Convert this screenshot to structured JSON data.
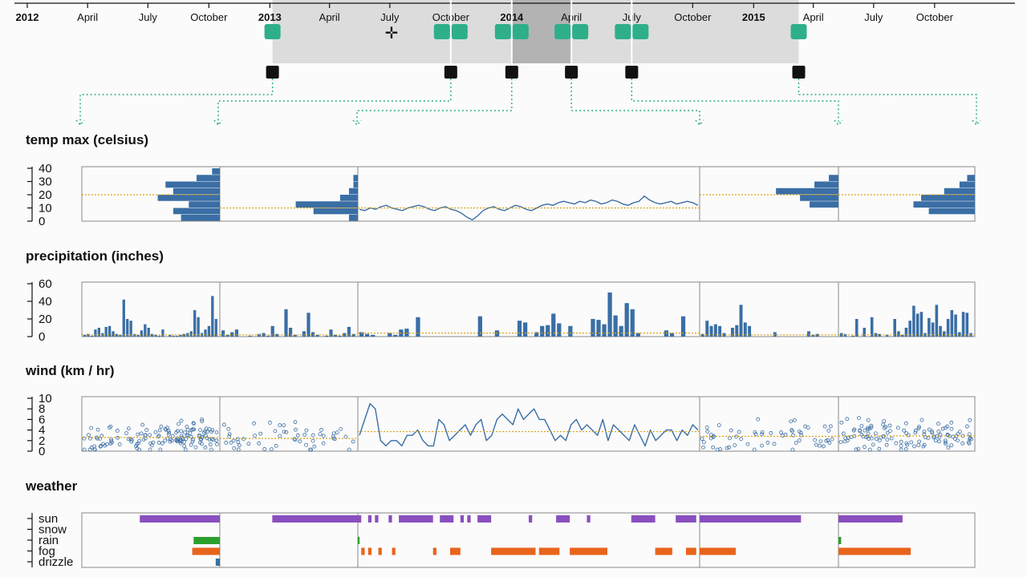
{
  "timeline": {
    "ticks": [
      {
        "label": "2012",
        "year": true,
        "x": "2012-01-01"
      },
      {
        "label": "April",
        "year": false,
        "x": "2012-04-01"
      },
      {
        "label": "July",
        "year": false,
        "x": "2012-07-01"
      },
      {
        "label": "October",
        "year": false,
        "x": "2012-10-01"
      },
      {
        "label": "2013",
        "year": true,
        "x": "2013-01-01"
      },
      {
        "label": "April",
        "year": false,
        "x": "2013-04-01"
      },
      {
        "label": "July",
        "year": false,
        "x": "2013-07-01"
      },
      {
        "label": "October",
        "year": false,
        "x": "2013-10-01"
      },
      {
        "label": "2014",
        "year": true,
        "x": "2014-01-01"
      },
      {
        "label": "April",
        "year": false,
        "x": "2014-04-01"
      },
      {
        "label": "July",
        "year": false,
        "x": "2014-07-01"
      },
      {
        "label": "October",
        "year": false,
        "x": "2014-10-01"
      },
      {
        "label": "2015",
        "year": true,
        "x": "2015-01-01"
      },
      {
        "label": "April",
        "year": false,
        "x": "2015-04-01"
      },
      {
        "label": "July",
        "year": false,
        "x": "2015-07-01"
      },
      {
        "label": "October",
        "year": false,
        "x": "2015-10-01"
      }
    ],
    "brush_range": [
      "2013-01-05",
      "2015-03-10"
    ],
    "highlight_range": [
      "2014-01-01",
      "2014-04-01"
    ],
    "split_dates": [
      "2013-01-05",
      "2013-10-01",
      "2014-01-01",
      "2014-04-01",
      "2014-07-01",
      "2015-03-10"
    ],
    "handle_colors": {
      "track": "#dcdcdc",
      "highlight": "#b3b3b3",
      "handle": "#2eaf8a",
      "split": "#111111"
    }
  },
  "panels": {
    "temp": {
      "title": "temp max (celsius)",
      "yticks": [
        "40",
        "30",
        "20",
        "10",
        "0"
      ]
    },
    "precip": {
      "title": "precipitation (inches)",
      "yticks": [
        "60",
        "40",
        "20",
        "0"
      ]
    },
    "wind": {
      "title": "wind (km / hr)",
      "yticks": [
        "10",
        "8",
        "6",
        "4",
        "2",
        "0"
      ]
    },
    "weather": {
      "title": "weather",
      "categories": [
        "sun",
        "snow",
        "rain",
        "fog",
        "drizzle"
      ]
    }
  },
  "colors": {
    "series": "#3a6ea5",
    "mean": "#d9a21b",
    "sun": "#8a4fbf",
    "snow": "#5aa7d8",
    "rain": "#2ca02c",
    "fog": "#e8641b",
    "drizzle": "#3a6ea5"
  },
  "chart_data": [
    {
      "type": "bar",
      "title": "temp max (celsius)",
      "ylim": [
        0,
        40
      ],
      "segments": [
        {
          "view": "histogram",
          "mean": 20,
          "bins": [
            [
              0,
              5,
              5
            ],
            [
              5,
              10,
              6
            ],
            [
              10,
              15,
              4
            ],
            [
              15,
              20,
              8
            ],
            [
              20,
              25,
              6
            ],
            [
              25,
              30,
              7
            ],
            [
              30,
              35,
              3
            ],
            [
              35,
              40,
              1
            ]
          ]
        },
        {
          "view": "histogram",
          "mean": 10,
          "bins": [
            [
              0,
              5,
              2
            ],
            [
              5,
              10,
              10
            ],
            [
              10,
              15,
              14
            ],
            [
              15,
              20,
              4
            ],
            [
              20,
              25,
              2
            ],
            [
              25,
              30,
              1
            ],
            [
              30,
              35,
              1
            ]
          ]
        },
        {
          "view": "line",
          "mean": 10,
          "values": [
            9,
            8,
            10,
            9,
            11,
            12,
            10,
            9,
            8,
            10,
            11,
            12,
            11,
            9,
            8,
            10,
            11,
            9,
            8,
            6,
            3,
            1,
            4,
            8,
            10,
            11,
            9,
            8,
            10,
            12,
            11,
            9,
            8,
            10,
            12,
            13,
            12,
            14,
            15,
            14,
            13,
            15,
            14,
            16,
            15,
            13,
            14,
            16,
            15,
            13,
            12,
            14,
            15,
            19,
            16,
            14,
            13,
            14,
            15,
            13,
            14,
            15,
            14,
            12
          ]
        },
        {
          "view": "histogram",
          "mean": 20,
          "bins": [
            [
              10,
              15,
              6
            ],
            [
              15,
              20,
              8
            ],
            [
              20,
              25,
              13
            ],
            [
              25,
              30,
              5
            ],
            [
              30,
              35,
              2
            ]
          ]
        },
        {
          "view": "histogram",
          "mean": 20,
          "bins": [
            [
              5,
              10,
              6
            ],
            [
              10,
              15,
              8
            ],
            [
              15,
              20,
              7
            ],
            [
              20,
              25,
              4
            ],
            [
              25,
              30,
              2
            ],
            [
              30,
              35,
              1
            ]
          ]
        }
      ]
    },
    {
      "type": "bar",
      "title": "precipitation (inches)",
      "ylim": [
        0,
        60
      ],
      "segments": [
        {
          "mean": 2,
          "values": [
            2,
            3,
            1,
            8,
            10,
            4,
            11,
            12,
            6,
            3,
            2,
            42,
            20,
            18,
            3,
            2,
            7,
            14,
            10,
            3,
            2,
            1,
            8,
            0,
            2,
            1,
            1,
            2,
            3,
            4,
            6,
            30,
            22,
            4,
            8,
            12,
            46,
            20
          ]
        },
        {
          "mean": 2,
          "values": [
            7,
            2,
            5,
            8,
            0,
            0,
            1,
            0,
            3,
            4,
            1,
            12,
            3,
            0,
            31,
            10,
            2,
            0,
            6,
            27,
            5,
            2,
            0,
            1,
            8,
            2,
            1,
            4,
            11,
            3
          ]
        },
        {
          "mean": 4,
          "values": [
            5,
            3,
            2,
            0,
            0,
            4,
            2,
            8,
            9,
            0,
            22,
            0,
            0,
            0,
            0,
            0,
            0,
            0,
            0,
            0,
            0,
            23,
            0,
            0,
            7,
            0,
            0,
            0,
            18,
            16,
            0,
            5,
            12,
            13,
            26,
            15,
            0,
            12,
            0,
            0,
            0,
            20,
            19,
            14,
            50,
            24,
            12,
            38,
            31,
            4,
            0,
            0,
            0,
            0,
            7,
            4,
            0,
            23,
            0,
            0
          ]
        },
        {
          "mean": 2,
          "values": [
            3,
            18,
            12,
            14,
            12,
            4,
            0,
            10,
            13,
            36,
            16,
            12,
            0,
            0,
            0,
            0,
            0,
            5,
            0,
            0,
            0,
            0,
            0,
            0,
            0,
            6,
            2,
            3,
            0,
            0,
            0,
            0
          ]
        },
        {
          "mean": 2,
          "values": [
            4,
            3,
            0,
            1,
            20,
            0,
            10,
            0,
            22,
            4,
            3,
            0,
            2,
            0,
            20,
            6,
            2,
            10,
            18,
            35,
            26,
            28,
            4,
            21,
            16,
            36,
            12,
            6,
            20,
            30,
            25,
            5,
            28,
            27,
            4
          ]
        }
      ]
    },
    {
      "type": "scatter",
      "title": "wind (km / hr)",
      "ylim": [
        0,
        10
      ],
      "segments": [
        {
          "view": "points",
          "mean": 2.6,
          "count": 140
        },
        {
          "view": "points",
          "mean": 2.4,
          "count": 55
        },
        {
          "view": "line",
          "mean": 3.7,
          "values": [
            3,
            6,
            9,
            8,
            2,
            1,
            2,
            2,
            1,
            3,
            3,
            4,
            2,
            1,
            1,
            6,
            5,
            2,
            3,
            4,
            5,
            3,
            5,
            6,
            2,
            3,
            6,
            7,
            6,
            5,
            8,
            6,
            7,
            8,
            6,
            6,
            4,
            2,
            3,
            2,
            5,
            6,
            4,
            5,
            4,
            3,
            6,
            2,
            5,
            4,
            3,
            2,
            5,
            3,
            1,
            4,
            2,
            3,
            4,
            4,
            2,
            4,
            3,
            5,
            4
          ]
        },
        {
          "view": "points",
          "mean": 2.8,
          "count": 60
        },
        {
          "view": "points",
          "mean": 2.9,
          "count": 120
        }
      ]
    },
    {
      "type": "bar",
      "title": "weather",
      "categories": [
        "sun",
        "snow",
        "rain",
        "fog",
        "drizzle"
      ],
      "segments": [
        {
          "marks": [
            [
              "sun",
              0.42,
              1.0
            ],
            [
              "rain",
              0.81,
              1.0
            ],
            [
              "fog",
              0.8,
              1.0
            ],
            [
              "drizzle",
              0.97,
              1.0
            ]
          ]
        },
        {
          "marks": [
            [
              "sun",
              0.38,
              1.0
            ]
          ]
        },
        {
          "marks": [
            [
              "sun",
              0.0,
              0.01
            ],
            [
              "sun",
              0.03,
              0.04
            ],
            [
              "sun",
              0.05,
              0.06
            ],
            [
              "sun",
              0.09,
              0.1
            ],
            [
              "sun",
              0.12,
              0.22
            ],
            [
              "sun",
              0.24,
              0.28
            ],
            [
              "sun",
              0.3,
              0.31
            ],
            [
              "sun",
              0.32,
              0.33
            ],
            [
              "sun",
              0.35,
              0.39
            ],
            [
              "sun",
              0.5,
              0.51
            ],
            [
              "sun",
              0.58,
              0.62
            ],
            [
              "sun",
              0.67,
              0.68
            ],
            [
              "sun",
              0.8,
              0.87
            ],
            [
              "sun",
              0.93,
              0.99
            ],
            [
              "rain",
              0.0,
              0.005
            ],
            [
              "fog",
              0.01,
              0.02
            ],
            [
              "fog",
              0.03,
              0.04
            ],
            [
              "fog",
              0.06,
              0.07
            ],
            [
              "fog",
              0.1,
              0.11
            ],
            [
              "fog",
              0.22,
              0.23
            ],
            [
              "fog",
              0.27,
              0.3
            ],
            [
              "fog",
              0.39,
              0.52
            ],
            [
              "fog",
              0.53,
              0.59
            ],
            [
              "fog",
              0.62,
              0.73
            ],
            [
              "fog",
              0.87,
              0.92
            ],
            [
              "fog",
              0.96,
              0.99
            ]
          ]
        },
        {
          "marks": [
            [
              "sun",
              0.0,
              0.73
            ],
            [
              "fog",
              0.0,
              0.26
            ]
          ]
        },
        {
          "marks": [
            [
              "sun",
              0.0,
              0.47
            ],
            [
              "rain",
              0.0,
              0.02
            ],
            [
              "fog",
              0.0,
              0.53
            ]
          ]
        }
      ]
    }
  ]
}
